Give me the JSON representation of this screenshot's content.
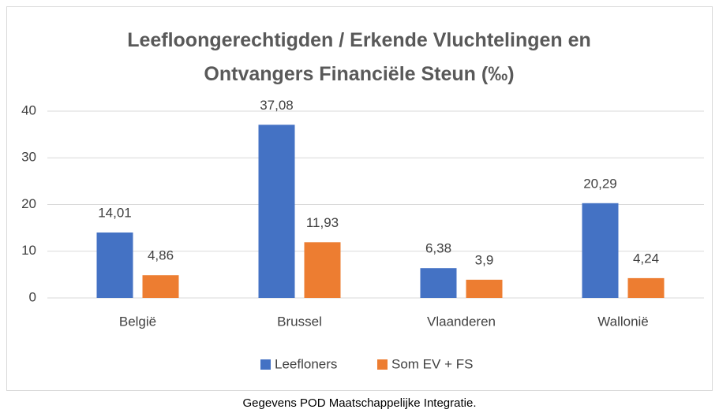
{
  "chart_data": {
    "type": "bar",
    "title": "Leefloongerechtigden / Erkende Vluchtelingen  en\nOntvangers Financiële Steun  (‰)",
    "categories": [
      "België",
      "Brussel",
      "Vlaanderen",
      "Wallonië"
    ],
    "series": [
      {
        "name": "Leefloners",
        "color": "#4472c4",
        "values": [
          14.01,
          37.08,
          6.38,
          20.29
        ],
        "value_labels": [
          "14,01",
          "37,08",
          "6,38",
          "20,29"
        ]
      },
      {
        "name": "Som EV + FS",
        "color": "#ed7d31",
        "values": [
          4.86,
          11.93,
          3.9,
          4.24
        ],
        "value_labels": [
          "4,86",
          "11,93",
          "3,9",
          "4,24"
        ]
      }
    ],
    "ylim": [
      0,
      40
    ],
    "yticks": [
      0,
      10,
      20,
      30,
      40
    ],
    "grid": true,
    "legend": "bottom"
  },
  "caption": "Gegevens POD Maatschappelijke Integratie."
}
